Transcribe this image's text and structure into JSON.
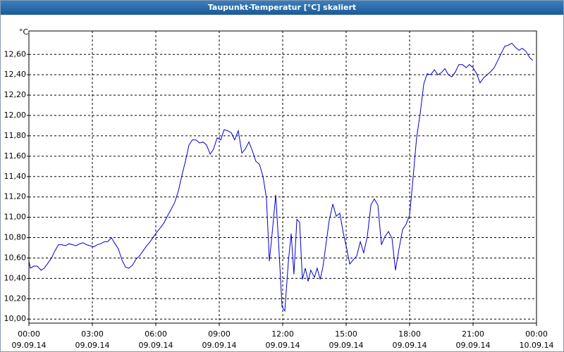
{
  "chart_data": {
    "type": "line",
    "title": "Taupunkt-Temperatur [°C] skaliert",
    "y_label": "°C",
    "color": "#0000cc",
    "grid": true,
    "xlim": [
      0,
      24
    ],
    "ylim": [
      9.96,
      12.83
    ],
    "xticks": [
      {
        "value": 0,
        "label": "00:00\n09.09.14"
      },
      {
        "value": 3,
        "label": "03:00\n09.09.14"
      },
      {
        "value": 6,
        "label": "06:00\n09.09.14"
      },
      {
        "value": 9,
        "label": "09:00\n09.09.14"
      },
      {
        "value": 12,
        "label": "12:00\n09.09.14"
      },
      {
        "value": 15,
        "label": "15:00\n09.09.14"
      },
      {
        "value": 18,
        "label": "18:00\n09.09.14"
      },
      {
        "value": 21,
        "label": "21:00\n09.09.14"
      },
      {
        "value": 24,
        "label": "00:00\n10.09.14"
      }
    ],
    "yticks": [
      {
        "value": 10.0,
        "label": "10,00"
      },
      {
        "value": 10.2,
        "label": "10,20"
      },
      {
        "value": 10.4,
        "label": "10,40"
      },
      {
        "value": 10.6,
        "label": "10,60"
      },
      {
        "value": 10.8,
        "label": "10,80"
      },
      {
        "value": 11.0,
        "label": "11,00"
      },
      {
        "value": 11.2,
        "label": "11,20"
      },
      {
        "value": 11.4,
        "label": "11,40"
      },
      {
        "value": 11.6,
        "label": "11,60"
      },
      {
        "value": 11.8,
        "label": "11,80"
      },
      {
        "value": 12.0,
        "label": "12,00"
      },
      {
        "value": 12.2,
        "label": "12,20"
      },
      {
        "value": 12.4,
        "label": "12,40"
      },
      {
        "value": 12.6,
        "label": "12,60"
      }
    ],
    "x": [
      0,
      0.07,
      0.23,
      0.4,
      0.57,
      0.73,
      0.9,
      1.07,
      1.23,
      1.4,
      1.57,
      1.73,
      1.9,
      2.07,
      2.23,
      2.4,
      2.57,
      2.73,
      2.9,
      3.07,
      3.23,
      3.4,
      3.57,
      3.73,
      3.9,
      4.07,
      4.23,
      4.4,
      4.57,
      4.73,
      4.9,
      5.07,
      5.23,
      5.4,
      5.57,
      5.73,
      5.9,
      6.07,
      6.23,
      6.4,
      6.57,
      6.73,
      6.9,
      7.07,
      7.23,
      7.4,
      7.57,
      7.73,
      7.9,
      8.07,
      8.23,
      8.4,
      8.57,
      8.73,
      8.9,
      9.07,
      9.23,
      9.4,
      9.57,
      9.73,
      9.9,
      10.07,
      10.23,
      10.4,
      10.57,
      10.73,
      10.9,
      11.07,
      11.23,
      11.37,
      11.5,
      11.67,
      11.8,
      11.97,
      12.1,
      12.27,
      12.4,
      12.53,
      12.67,
      12.8,
      12.93,
      13.07,
      13.2,
      13.33,
      13.5,
      13.63,
      13.77,
      13.9,
      14.03,
      14.2,
      14.37,
      14.53,
      14.7,
      14.87,
      15.03,
      15.17,
      15.33,
      15.5,
      15.67,
      15.83,
      16,
      16.17,
      16.33,
      16.5,
      16.67,
      16.83,
      17,
      17.17,
      17.33,
      17.5,
      17.67,
      17.83,
      18,
      18.17,
      18.33,
      18.5,
      18.67,
      18.83,
      19,
      19.17,
      19.33,
      19.5,
      19.67,
      19.83,
      20,
      20.17,
      20.33,
      20.5,
      20.67,
      20.83,
      21,
      21.17,
      21.33,
      21.5,
      21.67,
      21.83,
      22,
      22.17,
      22.33,
      22.5,
      22.67,
      22.83,
      23,
      23.17,
      23.33,
      23.5,
      23.67,
      23.83
    ],
    "values": [
      10.57,
      10.5,
      10.52,
      10.52,
      10.48,
      10.5,
      10.55,
      10.6,
      10.67,
      10.73,
      10.73,
      10.72,
      10.74,
      10.73,
      10.72,
      10.74,
      10.75,
      10.73,
      10.72,
      10.71,
      10.73,
      10.74,
      10.76,
      10.76,
      10.8,
      10.74,
      10.69,
      10.58,
      10.51,
      10.5,
      10.53,
      10.59,
      10.62,
      10.67,
      10.72,
      10.76,
      10.81,
      10.86,
      10.9,
      10.95,
      11.02,
      11.08,
      11.15,
      11.26,
      11.41,
      11.55,
      11.71,
      11.76,
      11.76,
      11.73,
      11.74,
      11.71,
      11.62,
      11.67,
      11.78,
      11.76,
      11.86,
      11.85,
      11.83,
      11.76,
      11.85,
      11.63,
      11.67,
      11.74,
      11.65,
      11.55,
      11.52,
      11.4,
      11.19,
      10.57,
      10.84,
      11.22,
      10.77,
      10.12,
      10.08,
      10.57,
      10.84,
      10.44,
      10.98,
      10.95,
      10.39,
      10.5,
      10.37,
      10.48,
      10.41,
      10.5,
      10.39,
      10.51,
      10.71,
      10.97,
      11.13,
      11.01,
      11.04,
      10.84,
      10.69,
      10.54,
      10.58,
      10.62,
      10.76,
      10.65,
      10.81,
      11.12,
      11.18,
      11.12,
      10.73,
      10.81,
      10.86,
      10.79,
      10.48,
      10.69,
      10.88,
      10.93,
      11.02,
      11.4,
      11.78,
      12.02,
      12.31,
      12.41,
      12.4,
      12.45,
      12.4,
      12.42,
      12.46,
      12.4,
      12.38,
      12.43,
      12.5,
      12.5,
      12.47,
      12.5,
      12.47,
      12.41,
      12.32,
      12.37,
      12.4,
      12.43,
      12.47,
      12.54,
      12.61,
      12.68,
      12.69,
      12.71,
      12.67,
      12.64,
      12.66,
      12.63,
      12.57,
      12.54
    ]
  }
}
